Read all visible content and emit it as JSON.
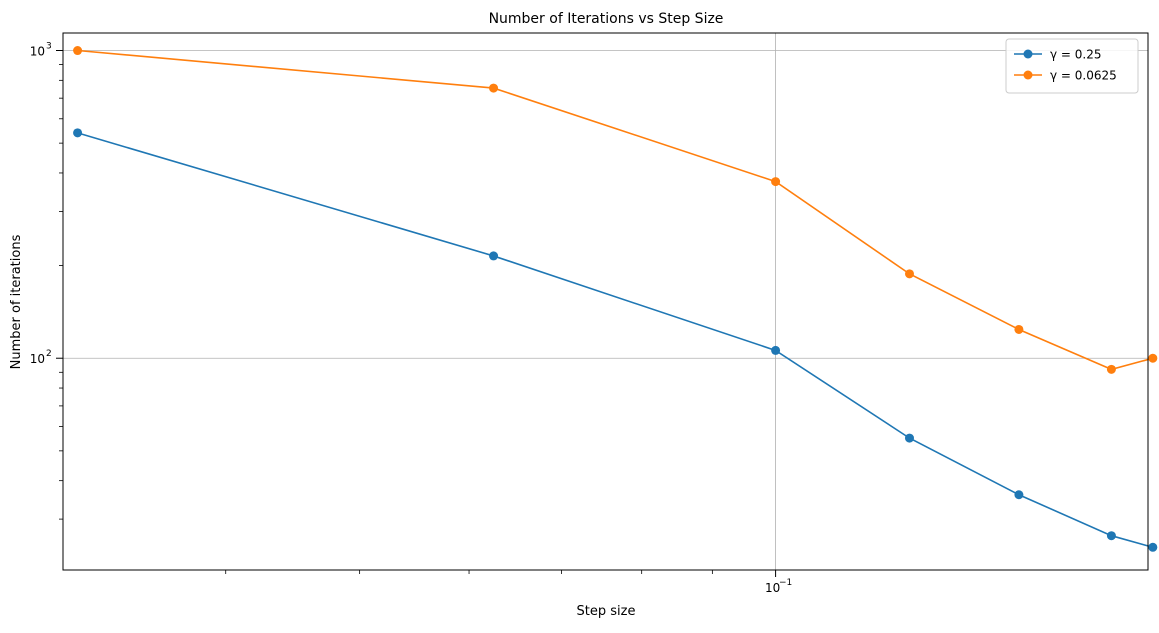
{
  "chart_data": {
    "type": "line",
    "title": "Number of Iterations vs Step Size",
    "xlabel": "Step size",
    "ylabel": "Number of iterations",
    "xscale": "log",
    "yscale": "log",
    "xlim": [
      0.0305,
      0.186
    ],
    "ylim": [
      20.5,
      1140
    ],
    "x_ticks": [
      {
        "value": 0.1,
        "label": "10",
        "exp": "−1"
      }
    ],
    "y_ticks": [
      {
        "value": 100,
        "label": "10",
        "exp": "2"
      },
      {
        "value": 1000,
        "label": "10",
        "exp": "3"
      }
    ],
    "x": [
      0.03125,
      0.0625,
      0.1,
      0.125,
      0.15,
      0.175,
      0.1875
    ],
    "series": [
      {
        "name": "γ = 0.25",
        "color": "#1f77b4",
        "values": [
          540,
          215,
          106,
          55,
          36,
          26.5,
          24.3
        ]
      },
      {
        "name": "γ = 0.0625",
        "color": "#ff7f0e",
        "values": [
          1000,
          755,
          375,
          188,
          124,
          92,
          100
        ]
      }
    ],
    "grid": true,
    "legend_position": "top-right"
  }
}
